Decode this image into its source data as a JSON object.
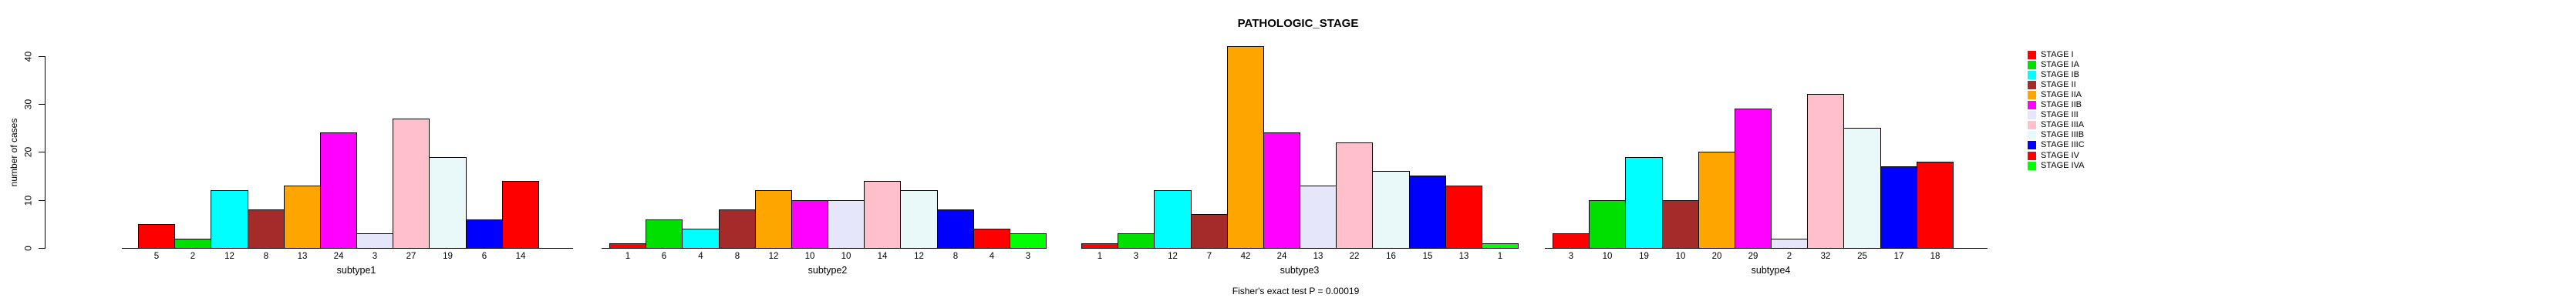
{
  "figure": {
    "title": "PATHOLOGIC_STAGE",
    "ylabel": "number of cases",
    "caption": "Fisher's exact test P = 0.00019"
  },
  "chart_data": {
    "type": "bar",
    "title": "PATHOLOGIC_STAGE",
    "ylabel": "number of cases",
    "caption": "Fisher's exact test P = 0.00019",
    "ylim": [
      0,
      40
    ],
    "yticks": [
      0,
      10,
      20,
      30,
      40
    ],
    "grid": false,
    "legend_position": "right",
    "bar_value_labels_shown_below_bars": true,
    "stages": [
      "STAGE I",
      "STAGE IA",
      "STAGE IB",
      "STAGE II",
      "STAGE IIA",
      "STAGE IIB",
      "STAGE III",
      "STAGE IIIA",
      "STAGE IIIB",
      "STAGE IIIC",
      "STAGE IV",
      "STAGE IVA"
    ],
    "stage_colors": {
      "STAGE I": "#FF0000",
      "STAGE IA": "#00E000",
      "STAGE IB": "#00FFFF",
      "STAGE II": "#A52A2A",
      "STAGE IIA": "#FFA500",
      "STAGE IIB": "#FF00FF",
      "STAGE III": "#E6E6FA",
      "STAGE IIIA": "#FFC0CB",
      "STAGE IIIB": "#E9F8F9",
      "STAGE IIIC": "#0000FF",
      "STAGE IV": "#FF0000",
      "STAGE IVA": "#00FF00"
    },
    "panels": [
      {
        "xlabel": "subtype1",
        "bars": [
          {
            "stage": "STAGE I",
            "value": 5
          },
          {
            "stage": "STAGE IA",
            "value": 2
          },
          {
            "stage": "STAGE IB",
            "value": 12
          },
          {
            "stage": "STAGE II",
            "value": 8
          },
          {
            "stage": "STAGE IIA",
            "value": 13
          },
          {
            "stage": "STAGE IIB",
            "value": 24
          },
          {
            "stage": "STAGE III",
            "value": 3
          },
          {
            "stage": "STAGE IIIA",
            "value": 27
          },
          {
            "stage": "STAGE IIIB",
            "value": 19
          },
          {
            "stage": "STAGE IIIC",
            "value": 6
          },
          {
            "stage": "STAGE IV",
            "value": 14
          }
        ]
      },
      {
        "xlabel": "subtype2",
        "bars": [
          {
            "stage": "STAGE I",
            "value": 1
          },
          {
            "stage": "STAGE IA",
            "value": 6
          },
          {
            "stage": "STAGE IB",
            "value": 4
          },
          {
            "stage": "STAGE II",
            "value": 8
          },
          {
            "stage": "STAGE IIA",
            "value": 12
          },
          {
            "stage": "STAGE IIB",
            "value": 10
          },
          {
            "stage": "STAGE III",
            "value": 10
          },
          {
            "stage": "STAGE IIIA",
            "value": 14
          },
          {
            "stage": "STAGE IIIB",
            "value": 12
          },
          {
            "stage": "STAGE IIIC",
            "value": 8
          },
          {
            "stage": "STAGE IV",
            "value": 4
          },
          {
            "stage": "STAGE IVA",
            "value": 3
          }
        ]
      },
      {
        "xlabel": "subtype3",
        "bars": [
          {
            "stage": "STAGE I",
            "value": 1
          },
          {
            "stage": "STAGE IA",
            "value": 3
          },
          {
            "stage": "STAGE IB",
            "value": 12
          },
          {
            "stage": "STAGE II",
            "value": 7
          },
          {
            "stage": "STAGE IIA",
            "value": 42
          },
          {
            "stage": "STAGE IIB",
            "value": 24
          },
          {
            "stage": "STAGE III",
            "value": 13
          },
          {
            "stage": "STAGE IIIA",
            "value": 22
          },
          {
            "stage": "STAGE IIIB",
            "value": 16
          },
          {
            "stage": "STAGE IIIC",
            "value": 15
          },
          {
            "stage": "STAGE IV",
            "value": 13
          },
          {
            "stage": "STAGE IVA",
            "value": 1
          }
        ]
      },
      {
        "xlabel": "subtype4",
        "bars": [
          {
            "stage": "STAGE I",
            "value": 3
          },
          {
            "stage": "STAGE IA",
            "value": 10
          },
          {
            "stage": "STAGE IB",
            "value": 19
          },
          {
            "stage": "STAGE II",
            "value": 10
          },
          {
            "stage": "STAGE IIA",
            "value": 20
          },
          {
            "stage": "STAGE IIB",
            "value": 29
          },
          {
            "stage": "STAGE III",
            "value": 2
          },
          {
            "stage": "STAGE IIIA",
            "value": 32
          },
          {
            "stage": "STAGE IIIB",
            "value": 25
          },
          {
            "stage": "STAGE IIIC",
            "value": 17
          },
          {
            "stage": "STAGE IV",
            "value": 18
          }
        ]
      }
    ],
    "legend": {
      "items": [
        {
          "label": "STAGE I",
          "color": "#FF0000"
        },
        {
          "label": "STAGE IA",
          "color": "#00E000"
        },
        {
          "label": "STAGE IB",
          "color": "#00FFFF"
        },
        {
          "label": "STAGE II",
          "color": "#A52A2A"
        },
        {
          "label": "STAGE IIA",
          "color": "#FFA500"
        },
        {
          "label": "STAGE IIB",
          "color": "#FF00FF"
        },
        {
          "label": "STAGE III",
          "color": "#E6E6FA"
        },
        {
          "label": "STAGE IIIA",
          "color": "#FFC0CB"
        },
        {
          "label": "STAGE IIIB",
          "color": "#E9F8F9"
        },
        {
          "label": "STAGE IIIC",
          "color": "#0000FF"
        },
        {
          "label": "STAGE IV",
          "color": "#FF0000"
        },
        {
          "label": "STAGE IVA",
          "color": "#00FF00"
        }
      ]
    }
  }
}
